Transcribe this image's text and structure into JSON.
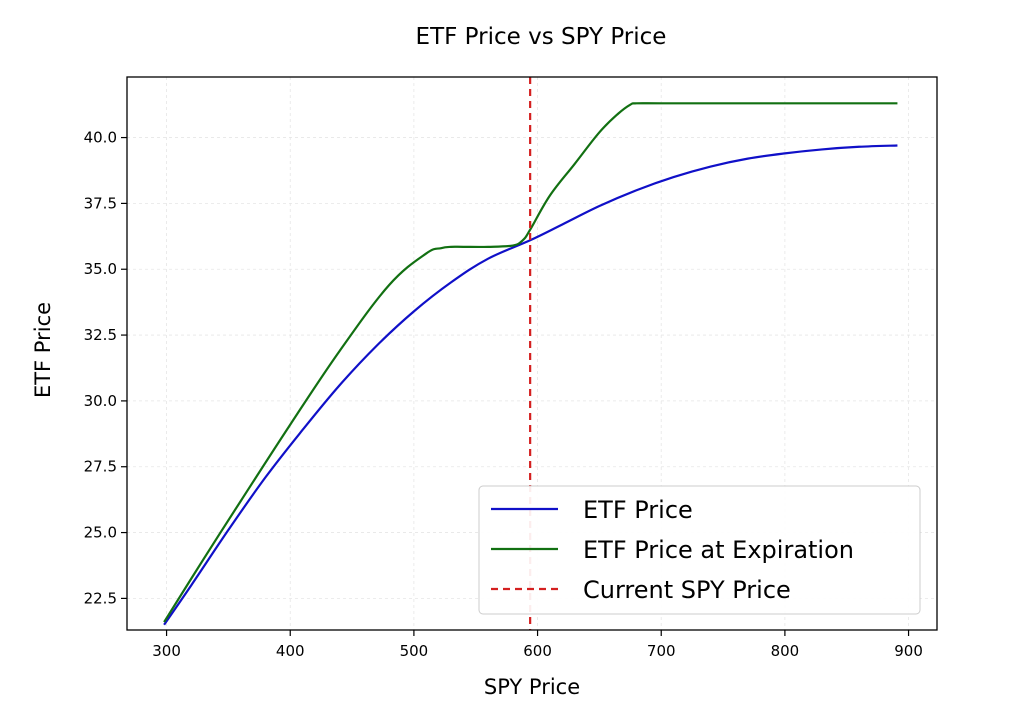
{
  "chart_data": {
    "type": "line",
    "title": "ETF Price vs SPY Price",
    "xlabel": "SPY Price",
    "ylabel": "ETF Price",
    "xlim": [
      268,
      923
    ],
    "ylim": [
      21.3,
      42.3
    ],
    "xticks": [
      "300",
      "400",
      "500",
      "600",
      "700",
      "800",
      "900"
    ],
    "xtick_values": [
      300,
      400,
      500,
      600,
      700,
      800,
      900
    ],
    "yticks": [
      "22.5",
      "25.0",
      "27.5",
      "30.0",
      "32.5",
      "35.0",
      "37.5",
      "40.0"
    ],
    "ytick_values": [
      22.5,
      25.0,
      27.5,
      30.0,
      32.5,
      35.0,
      37.5,
      40.0
    ],
    "grid": true,
    "legend_position": "lower-right",
    "series": [
      {
        "name": "ETF Price",
        "color": "#1010c8",
        "style": "solid",
        "x": [
          298,
          320,
          350,
          380,
          410,
          440,
          470,
          500,
          530,
          560,
          594,
          620,
          650,
          680,
          710,
          740,
          770,
          800,
          830,
          860,
          891
        ],
        "y": [
          21.5,
          23.0,
          25.1,
          27.1,
          28.9,
          30.6,
          32.1,
          33.4,
          34.5,
          35.4,
          36.1,
          36.7,
          37.4,
          38.0,
          38.5,
          38.9,
          39.2,
          39.4,
          39.55,
          39.65,
          39.7
        ]
      },
      {
        "name": "ETF Price at Expiration",
        "color": "#127012",
        "style": "solid",
        "x": [
          298,
          330,
          360,
          400,
          440,
          480,
          510,
          522,
          530,
          540,
          560,
          580,
          588,
          594,
          610,
          630,
          650,
          665,
          675,
          680,
          700,
          750,
          800,
          850,
          891
        ],
        "y": [
          21.6,
          24.0,
          26.2,
          29.1,
          31.9,
          34.4,
          35.6,
          35.8,
          35.85,
          35.85,
          35.85,
          35.9,
          36.1,
          36.5,
          37.8,
          39.0,
          40.2,
          40.9,
          41.25,
          41.3,
          41.3,
          41.3,
          41.3,
          41.3,
          41.3
        ]
      },
      {
        "name": "Current SPY Price",
        "color": "#d42020",
        "style": "dashed",
        "x_value": 594
      }
    ]
  }
}
